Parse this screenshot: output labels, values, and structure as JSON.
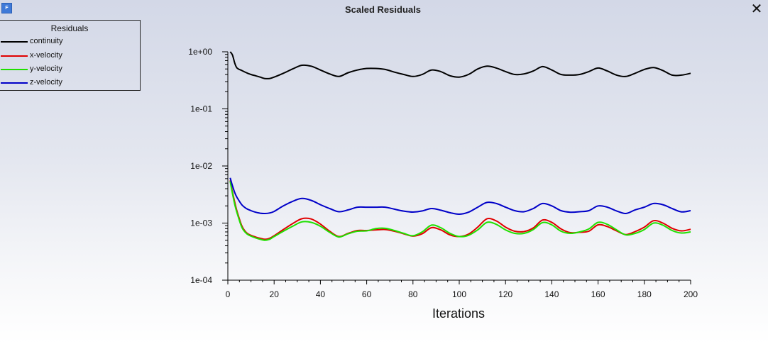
{
  "window": {
    "title": "Scaled Residuals",
    "close_glyph": "✕",
    "icon_letter": "F",
    "icon_name": "fluent-app-icon"
  },
  "legend": {
    "title": "Residuals",
    "items": [
      {
        "label": "continuity",
        "color": "#000000"
      },
      {
        "label": "x-velocity",
        "color": "#e00000"
      },
      {
        "label": "y-velocity",
        "color": "#1fe000"
      },
      {
        "label": "z-velocity",
        "color": "#0000c8"
      }
    ]
  },
  "chart_data": {
    "type": "line",
    "xlabel": "Iterations",
    "ylabel": "",
    "xlim": [
      0,
      200
    ],
    "ylim": [
      0.0001,
      1
    ],
    "yscale": "log",
    "grid": false,
    "legend_position": "top-left",
    "x_ticks": [
      0,
      20,
      40,
      60,
      80,
      100,
      120,
      140,
      160,
      180,
      200
    ],
    "y_ticks": [
      {
        "value": 1,
        "label": "1e+00"
      },
      {
        "value": 0.1,
        "label": "1e-01"
      },
      {
        "value": 0.01,
        "label": "1e-02"
      },
      {
        "value": 0.001,
        "label": "1e-03"
      },
      {
        "value": 0.0001,
        "label": "1e-04"
      }
    ],
    "x": [
      1,
      2,
      3,
      4,
      6,
      8,
      10,
      12,
      14,
      16,
      18,
      20,
      24,
      28,
      32,
      36,
      40,
      44,
      48,
      52,
      56,
      60,
      64,
      68,
      72,
      76,
      80,
      84,
      88,
      92,
      96,
      100,
      104,
      108,
      112,
      116,
      120,
      124,
      128,
      132,
      136,
      140,
      144,
      148,
      152,
      156,
      160,
      164,
      168,
      172,
      176,
      180,
      184,
      188,
      192,
      196,
      200
    ],
    "series": [
      {
        "name": "continuity",
        "color": "#000000",
        "values": [
          1.0,
          0.88,
          0.63,
          0.52,
          0.47,
          0.43,
          0.4,
          0.38,
          0.36,
          0.34,
          0.34,
          0.36,
          0.42,
          0.5,
          0.58,
          0.56,
          0.48,
          0.41,
          0.37,
          0.43,
          0.48,
          0.51,
          0.51,
          0.49,
          0.44,
          0.4,
          0.37,
          0.4,
          0.48,
          0.45,
          0.38,
          0.36,
          0.4,
          0.5,
          0.56,
          0.52,
          0.45,
          0.4,
          0.41,
          0.46,
          0.55,
          0.48,
          0.4,
          0.39,
          0.4,
          0.45,
          0.52,
          0.46,
          0.39,
          0.37,
          0.42,
          0.49,
          0.53,
          0.47,
          0.39,
          0.39,
          0.42
        ]
      },
      {
        "name": "x-velocity",
        "color": "#e00000",
        "values": [
          0.0056,
          0.0035,
          0.0023,
          0.0016,
          0.0009,
          0.00068,
          0.00061,
          0.00057,
          0.00054,
          0.00052,
          0.00054,
          0.0006,
          0.00077,
          0.00098,
          0.00119,
          0.00118,
          0.00096,
          0.00072,
          0.00058,
          0.00066,
          0.00074,
          0.00074,
          0.00076,
          0.00077,
          0.00072,
          0.00065,
          0.00059,
          0.00065,
          0.00083,
          0.00076,
          0.00062,
          0.00058,
          0.00064,
          0.00085,
          0.00119,
          0.00109,
          0.00085,
          0.00072,
          0.00071,
          0.00082,
          0.00113,
          0.00103,
          0.00079,
          0.00068,
          0.00069,
          0.00072,
          0.00093,
          0.00087,
          0.00073,
          0.00063,
          0.00071,
          0.00085,
          0.0011,
          0.001,
          0.00081,
          0.00073,
          0.00078
        ]
      },
      {
        "name": "y-velocity",
        "color": "#1fe000",
        "values": [
          0.0054,
          0.0033,
          0.0021,
          0.0015,
          0.00085,
          0.00066,
          0.00059,
          0.00055,
          0.00052,
          0.0005,
          0.00052,
          0.00058,
          0.00072,
          0.00088,
          0.00105,
          0.00103,
          0.00088,
          0.00069,
          0.00057,
          0.00065,
          0.00072,
          0.00073,
          0.0008,
          0.00081,
          0.00074,
          0.00066,
          0.0006,
          0.0007,
          0.00092,
          0.00083,
          0.00066,
          0.00058,
          0.00061,
          0.00076,
          0.00103,
          0.00095,
          0.00076,
          0.00066,
          0.00066,
          0.00077,
          0.00102,
          0.00093,
          0.00072,
          0.00066,
          0.0007,
          0.00079,
          0.00103,
          0.00095,
          0.00076,
          0.00062,
          0.00066,
          0.00077,
          0.001,
          0.00092,
          0.00074,
          0.00067,
          0.0007
        ]
      },
      {
        "name": "z-velocity",
        "color": "#0000c8",
        "values": [
          0.0062,
          0.0045,
          0.0034,
          0.0028,
          0.0021,
          0.0018,
          0.00165,
          0.00155,
          0.00149,
          0.00147,
          0.0015,
          0.0016,
          0.002,
          0.0024,
          0.0027,
          0.0025,
          0.0021,
          0.0018,
          0.00158,
          0.0017,
          0.0019,
          0.0019,
          0.0019,
          0.0019,
          0.00175,
          0.00162,
          0.00156,
          0.00163,
          0.0018,
          0.00168,
          0.00152,
          0.00143,
          0.00155,
          0.0019,
          0.0023,
          0.0022,
          0.0019,
          0.00165,
          0.00158,
          0.0018,
          0.0022,
          0.002,
          0.00165,
          0.00155,
          0.00158,
          0.00165,
          0.002,
          0.0019,
          0.00163,
          0.00147,
          0.0017,
          0.0019,
          0.0022,
          0.0021,
          0.0018,
          0.00157,
          0.00165
        ]
      }
    ]
  }
}
